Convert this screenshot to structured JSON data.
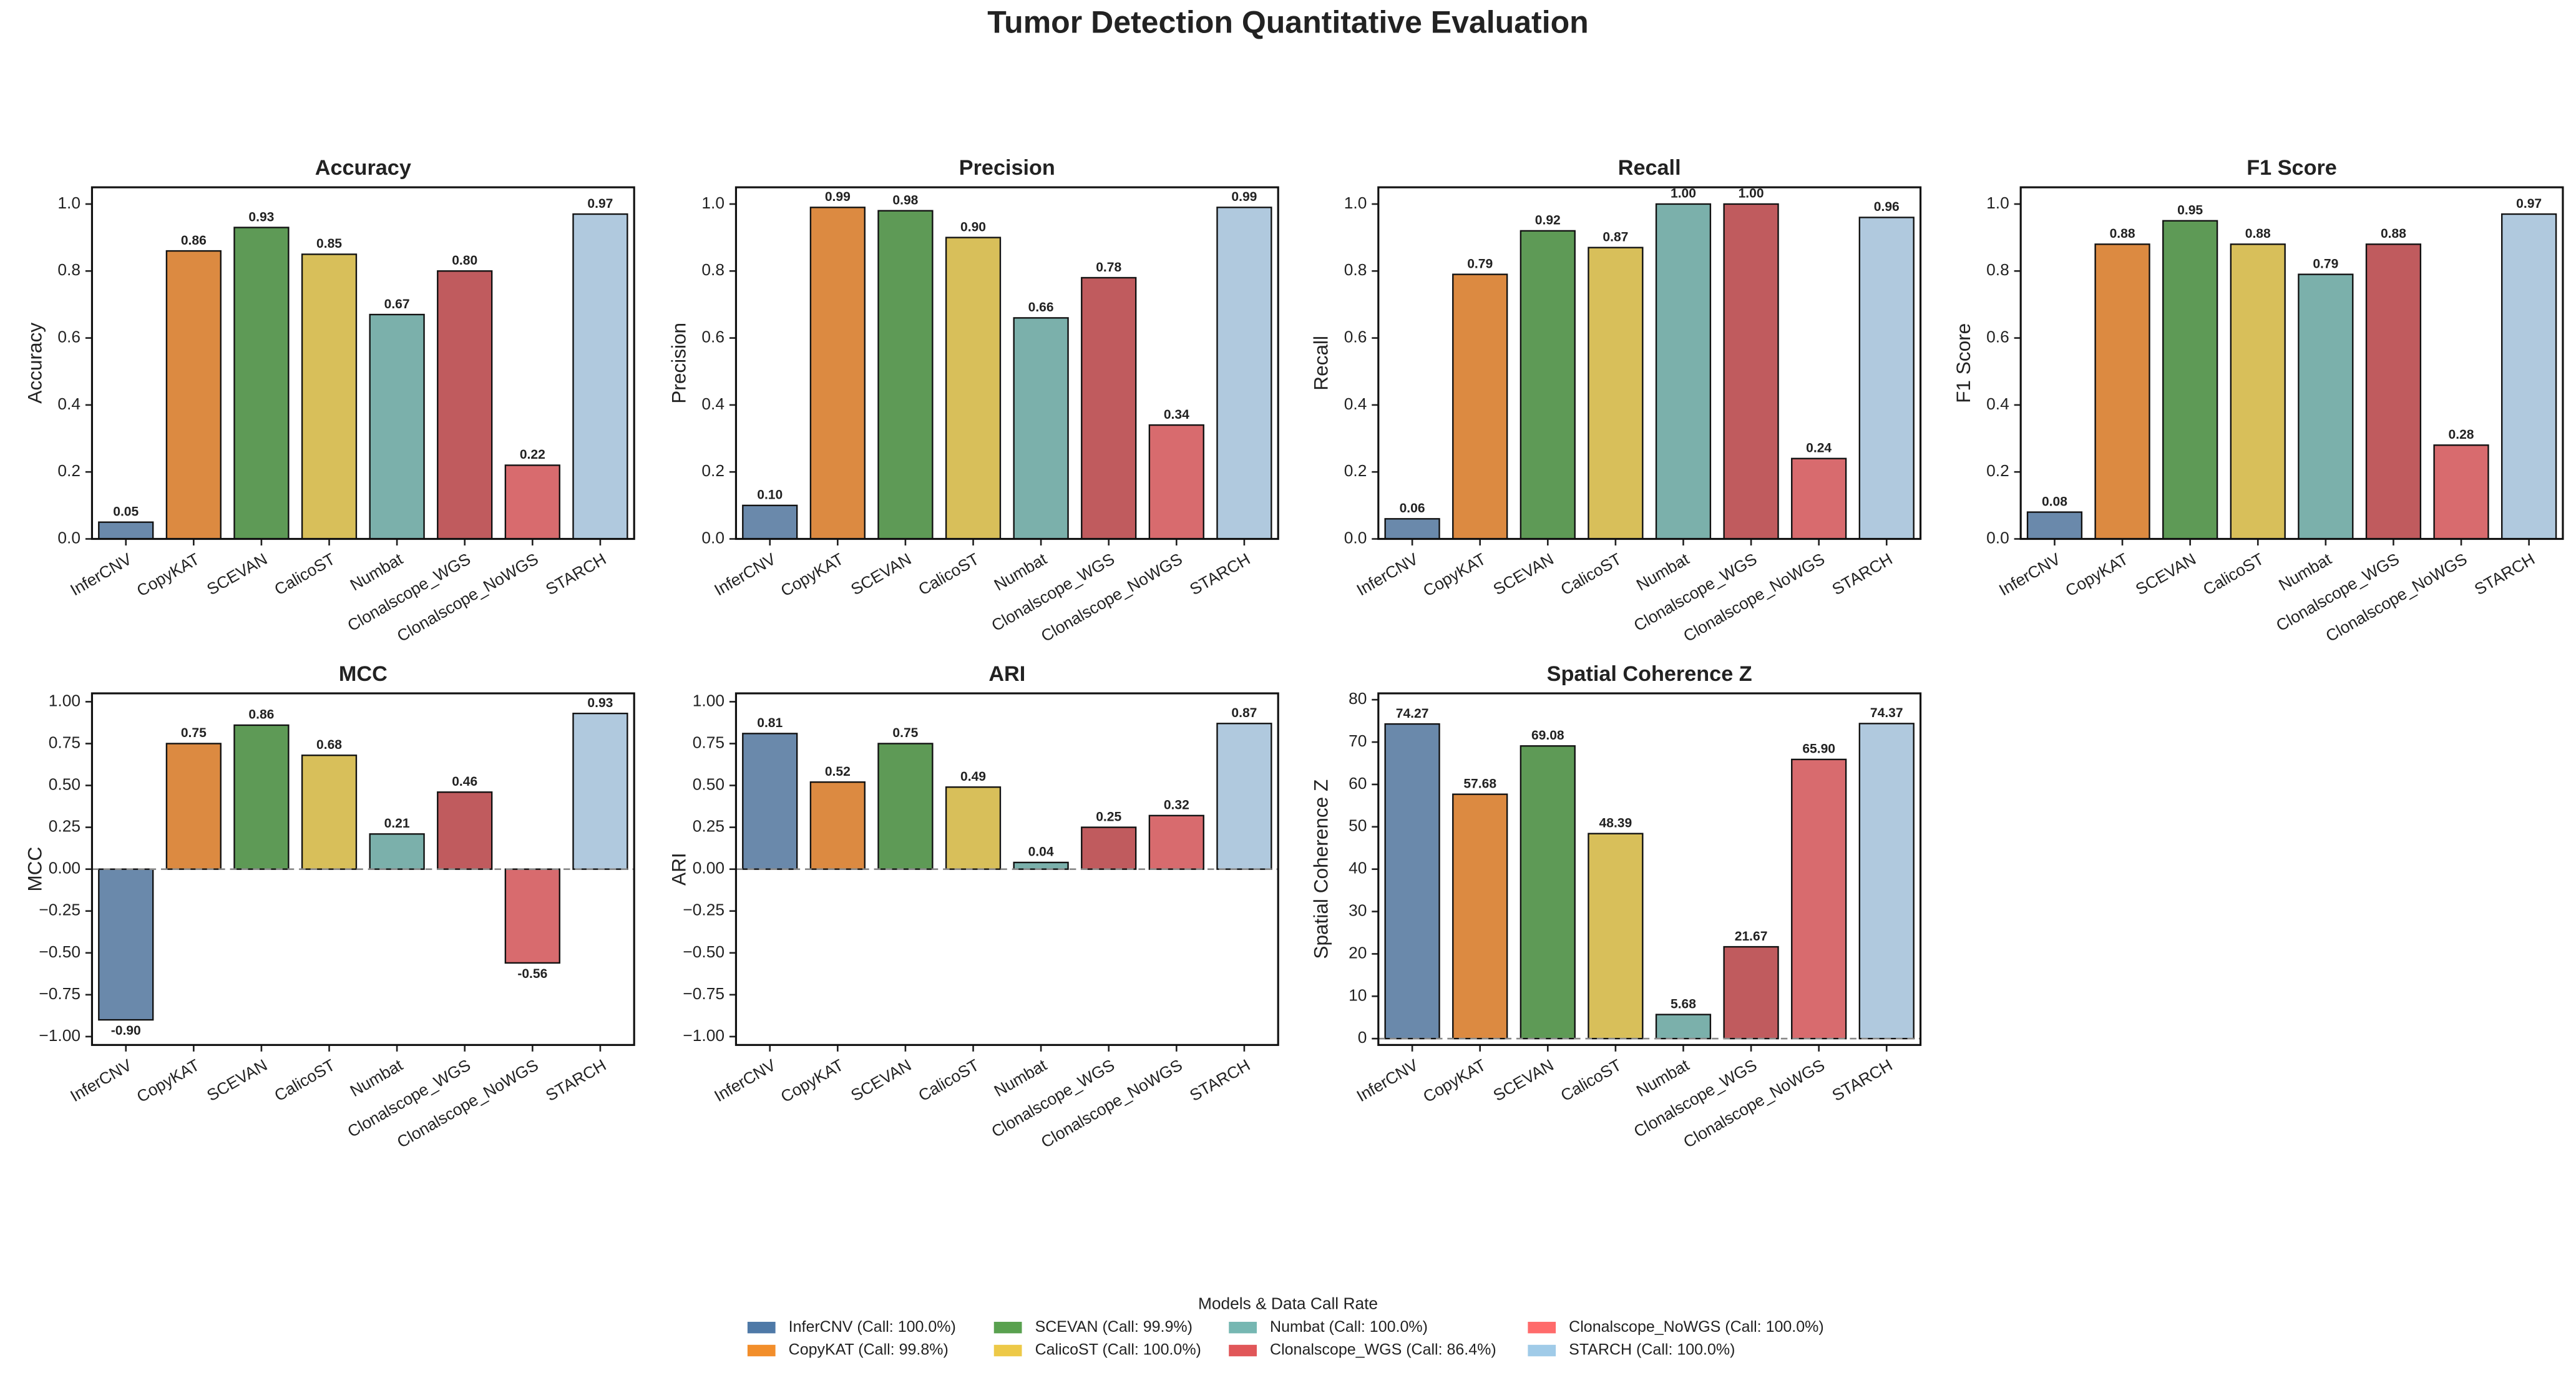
{
  "title": "Tumor Detection Quantitative Evaluation",
  "chart_data": [
    {
      "type": "bar",
      "title": "Accuracy",
      "ylabel": "Accuracy",
      "categories": [
        "InferCNV",
        "CopyKAT",
        "SCEVAN",
        "CalicoST",
        "Numbat",
        "Clonalscope_WGS",
        "Clonalscope_NoWGS",
        "STARCH"
      ],
      "values": [
        0.05,
        0.86,
        0.93,
        0.85,
        0.67,
        0.8,
        0.22,
        0.97
      ],
      "value_labels": [
        "0.05",
        "0.86",
        "0.93",
        "0.85",
        "0.67",
        "0.80",
        "0.22",
        "0.97"
      ],
      "colors": [
        "#6a89ab",
        "#dc8a41",
        "#5e9a56",
        "#d8bf5a",
        "#7bb0ab",
        "#c05b5e",
        "#d86b6e",
        "#b0c9de"
      ],
      "ylim": [
        0,
        1.05
      ],
      "yticks": [
        {
          "value": 0,
          "label": "0.0"
        },
        0.2,
        0.4,
        0.6,
        0.8,
        {
          "value": 1,
          "label": "1.0"
        }
      ]
    },
    {
      "type": "bar",
      "title": "Precision",
      "ylabel": "Precision",
      "categories": [
        "InferCNV",
        "CopyKAT",
        "SCEVAN",
        "CalicoST",
        "Numbat",
        "Clonalscope_WGS",
        "Clonalscope_NoWGS",
        "STARCH"
      ],
      "values": [
        0.1,
        0.99,
        0.98,
        0.9,
        0.66,
        0.78,
        0.34,
        0.99
      ],
      "value_labels": [
        "0.10",
        "0.99",
        "0.98",
        "0.90",
        "0.66",
        "0.78",
        "0.34",
        "0.99"
      ],
      "colors": [
        "#6a89ab",
        "#dc8a41",
        "#5e9a56",
        "#d8bf5a",
        "#7bb0ab",
        "#c05b5e",
        "#d86b6e",
        "#b0c9de"
      ],
      "ylim": [
        0,
        1.05
      ],
      "yticks": [
        {
          "value": 0,
          "label": "0.0"
        },
        0.2,
        0.4,
        0.6,
        0.8,
        {
          "value": 1,
          "label": "1.0"
        }
      ]
    },
    {
      "type": "bar",
      "title": "Recall",
      "ylabel": "Recall",
      "categories": [
        "InferCNV",
        "CopyKAT",
        "SCEVAN",
        "CalicoST",
        "Numbat",
        "Clonalscope_WGS",
        "Clonalscope_NoWGS",
        "STARCH"
      ],
      "values": [
        0.06,
        0.79,
        0.92,
        0.87,
        1.0,
        1.0,
        0.24,
        0.96
      ],
      "value_labels": [
        "0.06",
        "0.79",
        "0.92",
        "0.87",
        "1.00",
        "1.00",
        "0.24",
        "0.96"
      ],
      "colors": [
        "#6a89ab",
        "#dc8a41",
        "#5e9a56",
        "#d8bf5a",
        "#7bb0ab",
        "#c05b5e",
        "#d86b6e",
        "#b0c9de"
      ],
      "ylim": [
        0,
        1.05
      ],
      "yticks": [
        {
          "value": 0,
          "label": "0.0"
        },
        0.2,
        0.4,
        0.6,
        0.8,
        {
          "value": 1,
          "label": "1.0"
        }
      ]
    },
    {
      "type": "bar",
      "title": "F1 Score",
      "ylabel": "F1 Score",
      "categories": [
        "InferCNV",
        "CopyKAT",
        "SCEVAN",
        "CalicoST",
        "Numbat",
        "Clonalscope_WGS",
        "Clonalscope_NoWGS",
        "STARCH"
      ],
      "values": [
        0.08,
        0.88,
        0.95,
        0.88,
        0.79,
        0.88,
        0.28,
        0.97
      ],
      "value_labels": [
        "0.08",
        "0.88",
        "0.95",
        "0.88",
        "0.79",
        "0.88",
        "0.28",
        "0.97"
      ],
      "colors": [
        "#6a89ab",
        "#dc8a41",
        "#5e9a56",
        "#d8bf5a",
        "#7bb0ab",
        "#c05b5e",
        "#d86b6e",
        "#b0c9de"
      ],
      "ylim": [
        0,
        1.05
      ],
      "yticks": [
        {
          "value": 0,
          "label": "0.0"
        },
        0.2,
        0.4,
        0.6,
        0.8,
        {
          "value": 1,
          "label": "1.0"
        }
      ]
    },
    {
      "type": "bar",
      "title": "MCC",
      "ylabel": "MCC",
      "categories": [
        "InferCNV",
        "CopyKAT",
        "SCEVAN",
        "CalicoST",
        "Numbat",
        "Clonalscope_WGS",
        "Clonalscope_NoWGS",
        "STARCH"
      ],
      "values": [
        -0.9,
        0.75,
        0.86,
        0.68,
        0.21,
        0.46,
        -0.56,
        0.93
      ],
      "value_labels": [
        "-0.90",
        "0.75",
        "0.86",
        "0.68",
        "0.21",
        "0.46",
        "-0.56",
        "0.93"
      ],
      "colors": [
        "#6a89ab",
        "#dc8a41",
        "#5e9a56",
        "#d8bf5a",
        "#7bb0ab",
        "#c05b5e",
        "#d86b6e",
        "#b0c9de"
      ],
      "ylim": [
        -1.05,
        1.05
      ],
      "reference_line": 0,
      "yticks": [
        {
          "value": -1,
          "label": "−1.00"
        },
        {
          "value": -0.75,
          "label": "−0.75"
        },
        {
          "value": -0.5,
          "label": "−0.50"
        },
        {
          "value": -0.25,
          "label": "−0.25"
        },
        {
          "value": 0,
          "label": "0.00"
        },
        0.25,
        {
          "value": 0.5,
          "label": "0.50"
        },
        0.75,
        {
          "value": 1,
          "label": "1.00"
        }
      ]
    },
    {
      "type": "bar",
      "title": "ARI",
      "ylabel": "ARI",
      "categories": [
        "InferCNV",
        "CopyKAT",
        "SCEVAN",
        "CalicoST",
        "Numbat",
        "Clonalscope_WGS",
        "Clonalscope_NoWGS",
        "STARCH"
      ],
      "values": [
        0.81,
        0.52,
        0.75,
        0.49,
        0.04,
        0.25,
        0.32,
        0.87
      ],
      "value_labels": [
        "0.81",
        "0.52",
        "0.75",
        "0.49",
        "0.04",
        "0.25",
        "0.32",
        "0.87"
      ],
      "colors": [
        "#6a89ab",
        "#dc8a41",
        "#5e9a56",
        "#d8bf5a",
        "#7bb0ab",
        "#c05b5e",
        "#d86b6e",
        "#b0c9de"
      ],
      "ylim": [
        -1.05,
        1.05
      ],
      "reference_line": 0,
      "yticks": [
        {
          "value": -1,
          "label": "−1.00"
        },
        {
          "value": -0.75,
          "label": "−0.75"
        },
        {
          "value": -0.5,
          "label": "−0.50"
        },
        {
          "value": -0.25,
          "label": "−0.25"
        },
        {
          "value": 0,
          "label": "0.00"
        },
        0.25,
        {
          "value": 0.5,
          "label": "0.50"
        },
        0.75,
        {
          "value": 1,
          "label": "1.00"
        }
      ]
    },
    {
      "type": "bar",
      "title": "Spatial Coherence Z",
      "ylabel": "Spatial Coherence Z",
      "categories": [
        "InferCNV",
        "CopyKAT",
        "SCEVAN",
        "CalicoST",
        "Numbat",
        "Clonalscope_WGS",
        "Clonalscope_NoWGS",
        "STARCH"
      ],
      "values": [
        74.27,
        57.68,
        69.08,
        48.39,
        5.68,
        21.67,
        65.9,
        74.37
      ],
      "value_labels": [
        "74.27",
        "57.68",
        "69.08",
        "48.39",
        "5.68",
        "21.67",
        "65.90",
        "74.37"
      ],
      "colors": [
        "#6a89ab",
        "#dc8a41",
        "#5e9a56",
        "#d8bf5a",
        "#7bb0ab",
        "#c05b5e",
        "#d86b6e",
        "#b0c9de"
      ],
      "ylim": [
        -1.5,
        81.5
      ],
      "reference_line": 0,
      "yticks": [
        0,
        10,
        20,
        30,
        40,
        50,
        60,
        70,
        80
      ]
    }
  ],
  "legend": {
    "title": "Models & Data Call Rate",
    "labels": [
      "InferCNV (Call: 100.0%)",
      "CopyKAT (Call: 99.8%)",
      "SCEVAN (Call: 99.9%)",
      "CalicoST (Call: 100.0%)",
      "Numbat (Call: 100.0%)",
      "Clonalscope_WGS (Call: 86.4%)",
      "Clonalscope_NoWGS (Call: 100.0%)",
      "STARCH (Call: 100.0%)"
    ],
    "colors": [
      "#4e79a7",
      "#f28e2b",
      "#59a14f",
      "#edc948",
      "#76b7b2",
      "#e15759",
      "#ff6b6b",
      "#a0cbe8"
    ]
  }
}
